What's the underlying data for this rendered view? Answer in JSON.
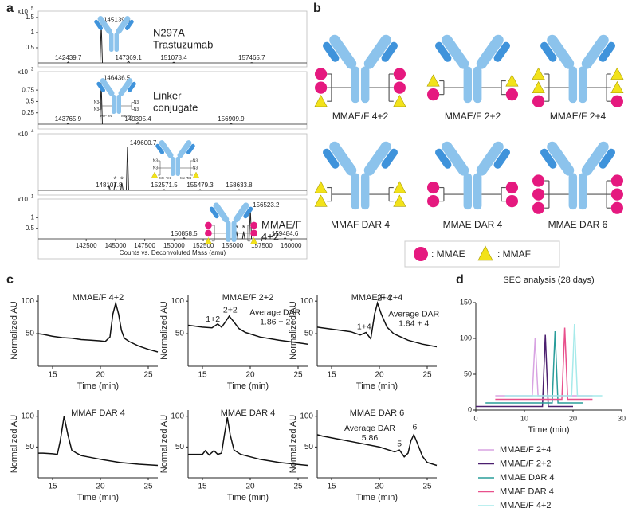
{
  "panel_labels": [
    "a",
    "b",
    "c",
    "d"
  ],
  "linker_icon": {
    "azide": "N3",
    "tetrazine": "Me-Tet"
  },
  "diagram": {
    "constructs": [
      "MMAE/F 4+2",
      "MMAE/F 2+2",
      "MMAE/F 2+4",
      "MMAF DAR 4",
      "MMAE DAR 4",
      "MMAE DAR 6"
    ],
    "legend": [
      ": MMAE",
      ": MMAF"
    ]
  },
  "chart_data": [
    {
      "type": "spectrum",
      "scale": {
        "base": "x10",
        "exponent": 5
      },
      "label": [
        "N297A",
        "Trastuzumab"
      ],
      "color": "#222",
      "x": [
        142439.7,
        145139.6,
        147369.1,
        151078.4,
        157465.7
      ],
      "values": [
        0.03,
        1.28,
        0.06,
        0.02,
        0.01
      ],
      "xlim": [
        139980,
        161980
      ],
      "ylim": [
        0,
        1.55
      ],
      "yticks": [
        0.5,
        1,
        1.5
      ]
    },
    {
      "type": "spectrum",
      "scale": {
        "base": "x10",
        "exponent": 2
      },
      "label": [
        "Linker",
        "conjugate"
      ],
      "color": "#222",
      "x": [
        143765.9,
        146436.5,
        149395.4,
        156909.9
      ],
      "values": [
        0.02,
        0.92,
        0.04,
        0.01
      ],
      "xlim": [
        141360,
        163020
      ],
      "ylim": [
        0,
        1.05
      ],
      "yticks": [
        0.25,
        0.5,
        0.75
      ]
    },
    {
      "type": "spectrum",
      "scale": {
        "base": "x10",
        "exponent": 4
      },
      "color": "#222",
      "x": [
        148107.8,
        149600.7,
        152571.5,
        155479.3,
        158633.8
      ],
      "values": [
        0.12,
        1.0,
        0.02,
        0.02,
        0.02
      ],
      "starred": {
        "x": [
          148600,
          149150
        ],
        "values": [
          0.17,
          0.17
        ]
      },
      "star_label": "*",
      "xlim": [
        142380,
        164120
      ],
      "ylim": [
        0,
        1.2
      ]
    },
    {
      "type": "spectrum",
      "scale": {
        "base": "x10",
        "exponent": 1
      },
      "label": [
        "MMAE/F",
        "4+2"
      ],
      "color": "#222",
      "x": [
        150858.5,
        156523.2,
        159484.6
      ],
      "values": [
        0.05,
        1.4,
        0.05
      ],
      "starred": {
        "x": [
          155350,
          155950
        ],
        "values": [
          0.35,
          0.35
        ]
      },
      "star_label": "*",
      "xlim": [
        138400,
        161350
      ],
      "ylim": [
        0,
        1.65
      ],
      "yticks": [
        0.5,
        1
      ],
      "xticks": [
        142500,
        145000,
        147500,
        150000,
        152500,
        155000,
        157500,
        160000
      ],
      "xlabel": "Counts vs. Deconvoluted Mass (amu)"
    },
    {
      "type": "line",
      "title": "MMAE/F 4+2",
      "xlabel": "Time (min)",
      "ylabel": "Normalized AU",
      "color": "#111",
      "x": [
        13.5,
        14,
        15,
        16,
        17,
        18,
        19,
        20,
        20.5,
        21,
        21.3,
        21.6,
        21.9,
        22.2,
        22.5,
        23,
        24,
        25,
        26
      ],
      "values": [
        50,
        49,
        46,
        44,
        43,
        41,
        40,
        39,
        38,
        45,
        80,
        97,
        80,
        55,
        43,
        38,
        31,
        26,
        22
      ],
      "xlim": [
        13.5,
        26
      ],
      "ylim": [
        0,
        110
      ],
      "xticks": [
        15,
        20,
        25
      ],
      "yticks": [
        50,
        100
      ]
    },
    {
      "type": "line",
      "title": "MMAE/F 2+2",
      "xlabel": "Time (min)",
      "ylabel": "Normalized AU",
      "color": "#111",
      "x": [
        13.5,
        14,
        15,
        16,
        16.6,
        17,
        17.3,
        17.8,
        18.3,
        18.8,
        19.5,
        21,
        23,
        26
      ],
      "values": [
        63,
        62,
        60,
        59,
        65,
        60,
        66,
        77,
        68,
        58,
        52,
        45,
        40,
        34
      ],
      "xlim": [
        13.5,
        26
      ],
      "ylim": [
        0,
        110
      ],
      "xticks": [
        15,
        20,
        25
      ],
      "yticks": [
        50,
        100
      ],
      "annotations": [
        {
          "text": [
            "1+2"
          ],
          "x": 16.1,
          "y": 72
        },
        {
          "text": [
            "2+2"
          ],
          "x": 17.9,
          "y": 86
        },
        {
          "text": [
            "Average DAR",
            "1.86 + 2"
          ],
          "x": 22.6,
          "y": 82
        }
      ]
    },
    {
      "type": "line",
      "title": "MMAE/F 2+4",
      "xlabel": "Time (min)",
      "ylabel": "Normalized AU",
      "color": "#111",
      "x": [
        13.5,
        14,
        15,
        16,
        17,
        18,
        18.6,
        19.1,
        19.5,
        19.8,
        20.2,
        20.8,
        21.5,
        23,
        24.5,
        26
      ],
      "values": [
        60,
        59,
        57,
        55,
        53,
        48,
        52,
        42,
        80,
        97,
        80,
        60,
        50,
        40,
        34,
        30
      ],
      "xlim": [
        13.5,
        26
      ],
      "ylim": [
        0,
        110
      ],
      "xticks": [
        15,
        20,
        25
      ],
      "yticks": [
        50,
        100
      ],
      "annotations": [
        {
          "text": [
            "1+4"
          ],
          "x": 18.4,
          "y": 60
        },
        {
          "text": [
            "2+4"
          ],
          "x": 20.5,
          "y": 104
        },
        {
          "text": [
            "Average DAR",
            "1.84 + 4"
          ],
          "x": 23.6,
          "y": 80
        }
      ]
    },
    {
      "type": "line",
      "title": "MMAF DAR 4",
      "xlabel": "Time (min)",
      "ylabel": "Normalized AU",
      "color": "#111",
      "x": [
        13.5,
        14,
        15,
        15.5,
        15.8,
        16.2,
        16.6,
        17,
        17.5,
        18,
        20,
        22,
        24,
        26
      ],
      "values": [
        40,
        40,
        39,
        38,
        60,
        100,
        70,
        45,
        40,
        36,
        30,
        25,
        22,
        20
      ],
      "xlim": [
        13.5,
        26
      ],
      "ylim": [
        0,
        110
      ],
      "xticks": [
        15,
        20,
        25
      ],
      "yticks": [
        50,
        100
      ]
    },
    {
      "type": "line",
      "title": "MMAE DAR 4",
      "xlabel": "Time (min)",
      "ylabel": "Normalized AU",
      "color": "#111",
      "x": [
        13.5,
        14,
        15,
        15.3,
        15.7,
        16.2,
        16.6,
        17,
        17.3,
        17.6,
        17.9,
        18.3,
        19,
        21,
        23,
        26
      ],
      "values": [
        38,
        38,
        38,
        44,
        37,
        44,
        38,
        40,
        70,
        98,
        70,
        45,
        38,
        30,
        25,
        20
      ],
      "xlim": [
        13.5,
        26
      ],
      "ylim": [
        0,
        110
      ],
      "xticks": [
        15,
        20,
        25
      ],
      "yticks": [
        50,
        100
      ]
    },
    {
      "type": "line",
      "title": "MMAE DAR 6",
      "xlabel": "Time (min)",
      "ylabel": "Normalized AU",
      "color": "#111",
      "x": [
        13.5,
        14,
        16,
        18,
        20,
        21,
        21.6,
        22.1,
        22.6,
        23,
        23.3,
        23.6,
        24,
        24.5,
        25,
        26
      ],
      "values": [
        70,
        68,
        62,
        56,
        50,
        45,
        42,
        45,
        34,
        40,
        60,
        70,
        55,
        35,
        25,
        20
      ],
      "xlim": [
        13.5,
        26
      ],
      "ylim": [
        0,
        110
      ],
      "xticks": [
        15,
        20,
        25
      ],
      "yticks": [
        50,
        100
      ],
      "annotations": [
        {
          "text": [
            "Average DAR",
            "5.86"
          ],
          "x": 19,
          "y": 80
        },
        {
          "text": [
            "5"
          ],
          "x": 22.1,
          "y": 55
        },
        {
          "text": [
            "6"
          ],
          "x": 23.7,
          "y": 82
        }
      ]
    },
    {
      "type": "line",
      "title": "SEC analysis (28 days)",
      "xlabel": "Time (min)",
      "legend": "below",
      "xlim": [
        0,
        30
      ],
      "ylim": [
        0,
        150
      ],
      "xticks": [
        0,
        10,
        20,
        30
      ],
      "yticks": [
        0,
        50,
        100,
        150
      ],
      "series": [
        {
          "name": "MMAE/F 2+4",
          "color": "#d8a3e2",
          "x": [
            4,
            11.6,
            12.2,
            12.8,
            24
          ],
          "values": [
            20,
            20,
            100,
            20,
            20
          ]
        },
        {
          "name": "MMAE/F 2+2",
          "color": "#4b1f6f",
          "x": [
            0,
            13.7,
            14.3,
            14.9,
            20
          ],
          "values": [
            5,
            5,
            105,
            5,
            5
          ]
        },
        {
          "name": "MMAE DAR 4",
          "color": "#2a9d9a",
          "x": [
            2,
            15.7,
            16.3,
            16.9,
            22
          ],
          "values": [
            10,
            10,
            110,
            10,
            10
          ]
        },
        {
          "name": "MMAF DAR 4",
          "color": "#e8508c",
          "x": [
            4,
            17.7,
            18.3,
            18.9,
            24
          ],
          "values": [
            15,
            15,
            115,
            15,
            15
          ]
        },
        {
          "name": "MMAE/F 4+2",
          "color": "#a6eaea",
          "x": [
            6,
            19.7,
            20.3,
            20.9,
            26
          ],
          "values": [
            20,
            20,
            120,
            20,
            20
          ]
        }
      ]
    }
  ]
}
